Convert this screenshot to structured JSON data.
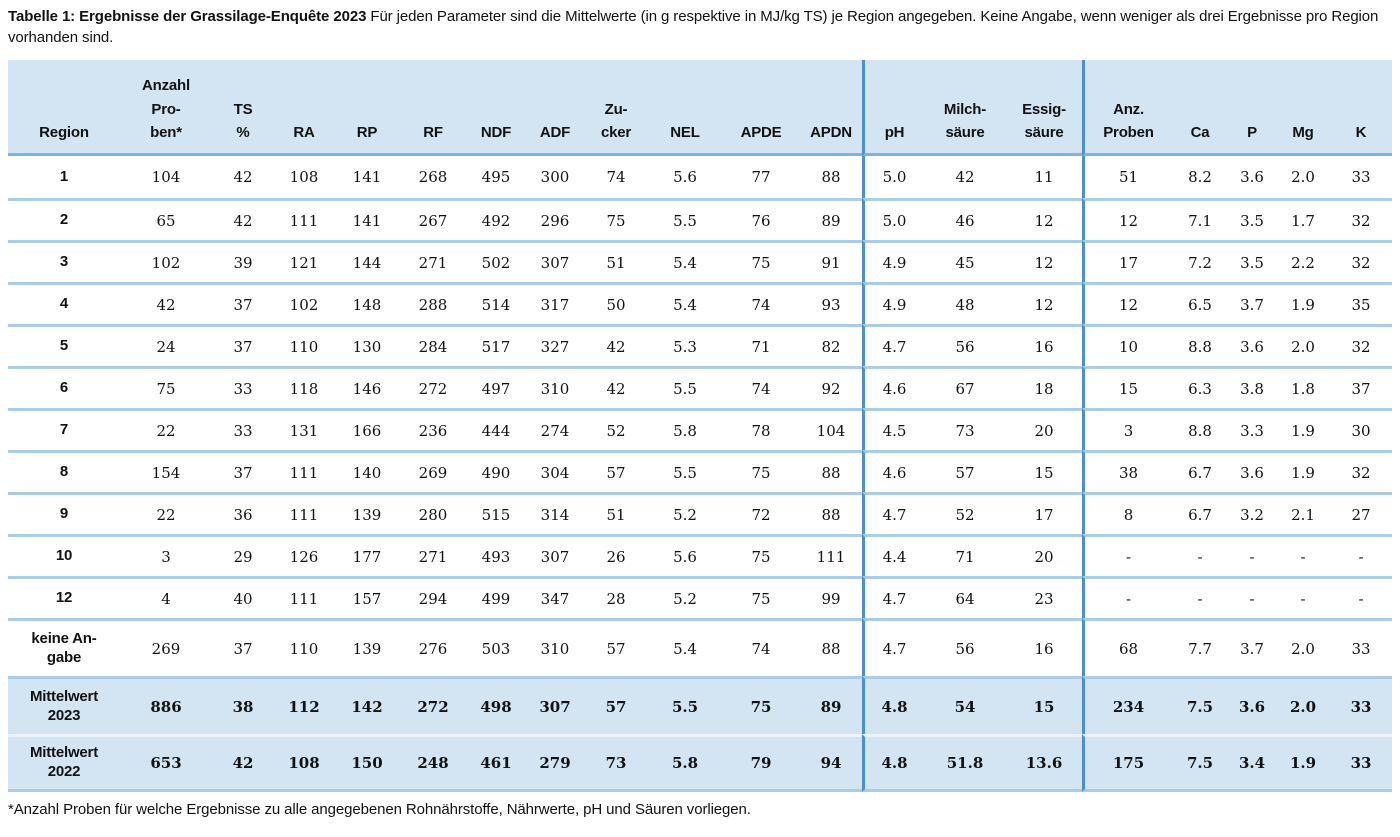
{
  "caption": {
    "bold": "Tabelle 1: Ergebnisse der Grassilage-Enquête 2023",
    "text": " Für jeden Parameter sind die Mittelwerte (in g respektive in MJ/kg TS) je Region angegeben. Keine Angabe, wenn weniger als drei Ergebnisse pro Region vorhanden sind."
  },
  "footnote": "*Anzahl Proben für welche Ergebnisse zu alle angegebenen Rohnährstoffe, Nährwerte, pH und Säuren vorliegen.",
  "colors": {
    "header_bg": "#d3e5f2",
    "summary_bg": "#d3e5f2",
    "section_divider": "#4a8fd0",
    "row_line": "#a9cde9",
    "header_line": "#7fb2dd",
    "summary_gap_line": "#eaf3fa",
    "text": "#121212"
  },
  "table": {
    "columns": [
      {
        "key": "region",
        "header_lines": [
          "Region"
        ],
        "section": 1
      },
      {
        "key": "anzahl_proben",
        "header_lines": [
          "Anzahl",
          "Pro-",
          "ben*"
        ],
        "section": 1
      },
      {
        "key": "ts_pct",
        "header_lines": [
          "TS",
          "%"
        ],
        "section": 1
      },
      {
        "key": "ra",
        "header_lines": [
          "RA"
        ],
        "section": 1
      },
      {
        "key": "rp",
        "header_lines": [
          "RP"
        ],
        "section": 1
      },
      {
        "key": "rf",
        "header_lines": [
          "RF"
        ],
        "section": 1
      },
      {
        "key": "ndf",
        "header_lines": [
          "NDF"
        ],
        "section": 1
      },
      {
        "key": "adf",
        "header_lines": [
          "ADF"
        ],
        "section": 1
      },
      {
        "key": "zucker",
        "header_lines": [
          "Zu-",
          "cker"
        ],
        "section": 1
      },
      {
        "key": "nel",
        "header_lines": [
          "NEL"
        ],
        "section": 1
      },
      {
        "key": "apde",
        "header_lines": [
          "APDE"
        ],
        "section": 1
      },
      {
        "key": "apdn",
        "header_lines": [
          "APDN"
        ],
        "section": 1
      },
      {
        "key": "ph",
        "header_lines": [
          "pH"
        ],
        "section": 2,
        "section_start": true
      },
      {
        "key": "milchsaeure",
        "header_lines": [
          "Milch-",
          "säure"
        ],
        "section": 2
      },
      {
        "key": "essigsaeure",
        "header_lines": [
          "Essig-",
          "säure"
        ],
        "section": 2
      },
      {
        "key": "anz_proben",
        "header_lines": [
          "Anz.",
          "Proben"
        ],
        "section": 3,
        "section_start": true
      },
      {
        "key": "ca",
        "header_lines": [
          "Ca"
        ],
        "section": 3
      },
      {
        "key": "p",
        "header_lines": [
          "P"
        ],
        "section": 3
      },
      {
        "key": "mg",
        "header_lines": [
          "Mg"
        ],
        "section": 3
      },
      {
        "key": "k",
        "header_lines": [
          "K"
        ],
        "section": 3
      }
    ],
    "rows": [
      {
        "label": "1",
        "type": "data",
        "values": [
          "104",
          "42",
          "108",
          "141",
          "268",
          "495",
          "300",
          "74",
          "5.6",
          "77",
          "88",
          "5.0",
          "42",
          "11",
          "51",
          "8.2",
          "3.6",
          "2.0",
          "33"
        ]
      },
      {
        "label": "2",
        "type": "data",
        "values": [
          "65",
          "42",
          "111",
          "141",
          "267",
          "492",
          "296",
          "75",
          "5.5",
          "76",
          "89",
          "5.0",
          "46",
          "12",
          "12",
          "7.1",
          "3.5",
          "1.7",
          "32"
        ]
      },
      {
        "label": "3",
        "type": "data",
        "values": [
          "102",
          "39",
          "121",
          "144",
          "271",
          "502",
          "307",
          "51",
          "5.4",
          "75",
          "91",
          "4.9",
          "45",
          "12",
          "17",
          "7.2",
          "3.5",
          "2.2",
          "32"
        ]
      },
      {
        "label": "4",
        "type": "data",
        "values": [
          "42",
          "37",
          "102",
          "148",
          "288",
          "514",
          "317",
          "50",
          "5.4",
          "74",
          "93",
          "4.9",
          "48",
          "12",
          "12",
          "6.5",
          "3.7",
          "1.9",
          "35"
        ]
      },
      {
        "label": "5",
        "type": "data",
        "values": [
          "24",
          "37",
          "110",
          "130",
          "284",
          "517",
          "327",
          "42",
          "5.3",
          "71",
          "82",
          "4.7",
          "56",
          "16",
          "10",
          "8.8",
          "3.6",
          "2.0",
          "32"
        ]
      },
      {
        "label": "6",
        "type": "data",
        "values": [
          "75",
          "33",
          "118",
          "146",
          "272",
          "497",
          "310",
          "42",
          "5.5",
          "74",
          "92",
          "4.6",
          "67",
          "18",
          "15",
          "6.3",
          "3.8",
          "1.8",
          "37"
        ]
      },
      {
        "label": "7",
        "type": "data",
        "values": [
          "22",
          "33",
          "131",
          "166",
          "236",
          "444",
          "274",
          "52",
          "5.8",
          "78",
          "104",
          "4.5",
          "73",
          "20",
          "3",
          "8.8",
          "3.3",
          "1.9",
          "30"
        ]
      },
      {
        "label": "8",
        "type": "data",
        "values": [
          "154",
          "37",
          "111",
          "140",
          "269",
          "490",
          "304",
          "57",
          "5.5",
          "75",
          "88",
          "4.6",
          "57",
          "15",
          "38",
          "6.7",
          "3.6",
          "1.9",
          "32"
        ]
      },
      {
        "label": "9",
        "type": "data",
        "values": [
          "22",
          "36",
          "111",
          "139",
          "280",
          "515",
          "314",
          "51",
          "5.2",
          "72",
          "88",
          "4.7",
          "52",
          "17",
          "8",
          "6.7",
          "3.2",
          "2.1",
          "27"
        ]
      },
      {
        "label": "10",
        "type": "data",
        "values": [
          "3",
          "29",
          "126",
          "177",
          "271",
          "493",
          "307",
          "26",
          "5.6",
          "75",
          "111",
          "4.4",
          "71",
          "20",
          "-",
          "-",
          "-",
          "-",
          "-"
        ]
      },
      {
        "label": "12",
        "type": "data",
        "values": [
          "4",
          "40",
          "111",
          "157",
          "294",
          "499",
          "347",
          "28",
          "5.2",
          "75",
          "99",
          "4.7",
          "64",
          "23",
          "-",
          "-",
          "-",
          "-",
          "-"
        ]
      },
      {
        "label": "keine An-\ngabe",
        "type": "data-tall",
        "values": [
          "269",
          "37",
          "110",
          "139",
          "276",
          "503",
          "310",
          "57",
          "5.4",
          "74",
          "88",
          "4.7",
          "56",
          "16",
          "68",
          "7.7",
          "3.7",
          "2.0",
          "33"
        ]
      },
      {
        "label": "Mittelwert\n2023",
        "type": "summary",
        "values": [
          "886",
          "38",
          "112",
          "142",
          "272",
          "498",
          "307",
          "57",
          "5.5",
          "75",
          "89",
          "4.8",
          "54",
          "15",
          "234",
          "7.5",
          "3.6",
          "2.0",
          "33"
        ]
      },
      {
        "label": "Mittelwert\n2022",
        "type": "summary",
        "values": [
          "653",
          "42",
          "108",
          "150",
          "248",
          "461",
          "279",
          "73",
          "5.8",
          "79",
          "94",
          "4.8",
          "51.8",
          "13.6",
          "175",
          "7.5",
          "3.4",
          "1.9",
          "33"
        ]
      }
    ]
  }
}
